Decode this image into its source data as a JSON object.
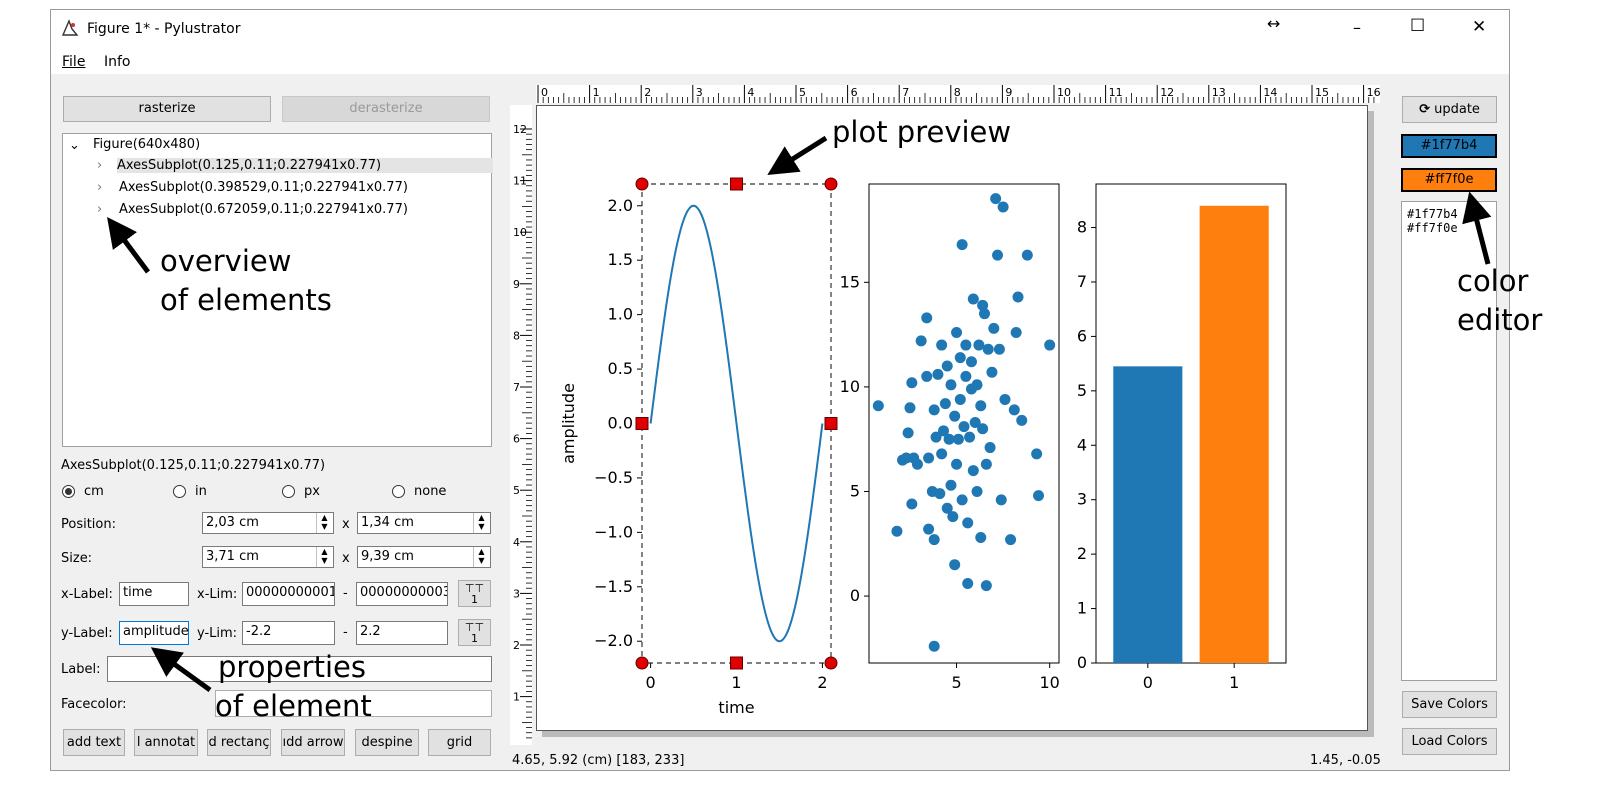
{
  "window": {
    "title": "Figure 1* - Pylustrator",
    "controls": {
      "resize": "↔",
      "minimize": "–",
      "maximize": "☐",
      "close": "✕"
    }
  },
  "menu": {
    "items": [
      "File",
      "Info"
    ]
  },
  "left_panel": {
    "rasterize_label": "rasterize",
    "derasterize_label": "derasterize",
    "tree": {
      "root": "Figure(640x480)",
      "children": [
        "AxesSubplot(0.125,0.11;0.227941x0.77)",
        "AxesSubplot(0.398529,0.11;0.227941x0.77)",
        "AxesSubplot(0.672059,0.11;0.227941x0.77)"
      ]
    },
    "selected_element": "AxesSubplot(0.125,0.11;0.227941x0.77)",
    "units": [
      "cm",
      "in",
      "px",
      "none"
    ],
    "selected_unit": "cm",
    "position": {
      "label": "Position:",
      "x": "2,03 cm",
      "y": "1,34 cm"
    },
    "size": {
      "label": "Size:",
      "w": "3,71 cm",
      "h": "9,39 cm"
    },
    "x_sep": "x",
    "xlabel": {
      "label": "x-Label:",
      "value": "time"
    },
    "xlim": {
      "label": "x-Lim:",
      "min": "00000000001",
      "max": "00000000003"
    },
    "ylabel": {
      "label": "y-Label:",
      "value": "amplitude"
    },
    "ylim": {
      "label": "y-Lim:",
      "min": "-2.2",
      "max": "2.2"
    },
    "dash": "-",
    "label_field": {
      "label": "Label:",
      "value": ""
    },
    "facecolor": {
      "label": "Facecolor:"
    },
    "tool_buttons": [
      "add text",
      "l annotat",
      "d rectanç",
      "ıdd arrow",
      "despine",
      "grid"
    ]
  },
  "annotations": {
    "plot_preview": "plot preview",
    "overview_1": "overview",
    "overview_2": "of elements",
    "properties_1": "properties",
    "properties_2": "of element",
    "color_1": "color",
    "color_2": "editor"
  },
  "ruler": {
    "h_labels": [
      "0",
      "1",
      "2",
      "3",
      "4",
      "5",
      "6",
      "7",
      "8",
      "9",
      "10",
      "11",
      "12",
      "13",
      "14",
      "15",
      "16"
    ],
    "v_labels": [
      "12",
      "11",
      "10",
      "9",
      "8",
      "7",
      "6",
      "5",
      "4",
      "3",
      "2",
      "1"
    ]
  },
  "right_panel": {
    "update_label": "update",
    "colors": [
      "#1f77b4",
      "#ff7f0e"
    ],
    "color_list_text": [
      "#1f77b4",
      "#ff7f0e"
    ],
    "save_colors": "Save Colors",
    "load_colors": "Load Colors"
  },
  "status": {
    "left": "4.65, 5.92 (cm) [183, 233]",
    "right": "1.45, -0.05"
  },
  "chart_data": [
    {
      "type": "line",
      "title": "",
      "xlabel": "time",
      "ylabel": "amplitude",
      "xlim": [
        -0.1,
        2.1
      ],
      "ylim": [
        -2.2,
        2.2
      ],
      "x_ticks": [
        0,
        1,
        2
      ],
      "y_ticks": [
        -2.0,
        -1.5,
        -1.0,
        -0.5,
        0.0,
        0.5,
        1.0,
        1.5,
        2.0
      ],
      "y_tick_labels": [
        "−2.0",
        "−1.5",
        "−1.0",
        "−0.5",
        "0.0",
        "0.5",
        "1.0",
        "1.5",
        "2.0"
      ],
      "series": [
        {
          "function": "2*sin(pi*t)",
          "t_range": [
            0,
            2
          ],
          "color": "#1f77b4"
        }
      ]
    },
    {
      "type": "scatter",
      "xlim": [
        0.3,
        10.5
      ],
      "ylim": [
        -3.2,
        19.7
      ],
      "x_ticks": [
        5,
        10
      ],
      "y_ticks": [
        0,
        5,
        10,
        15
      ],
      "color": "#1f77b4",
      "points": [
        [
          0.8,
          9.1
        ],
        [
          1.8,
          3.1
        ],
        [
          2.1,
          6.5
        ],
        [
          2.3,
          6.6
        ],
        [
          2.4,
          7.8
        ],
        [
          2.5,
          9.0
        ],
        [
          2.6,
          4.4
        ],
        [
          2.6,
          10.2
        ],
        [
          2.7,
          6.6
        ],
        [
          2.9,
          6.3
        ],
        [
          3.1,
          12.2
        ],
        [
          3.4,
          13.3
        ],
        [
          3.4,
          10.5
        ],
        [
          3.5,
          6.6
        ],
        [
          3.5,
          3.2
        ],
        [
          3.7,
          5.0
        ],
        [
          3.8,
          2.7
        ],
        [
          3.8,
          8.9
        ],
        [
          3.9,
          7.6
        ],
        [
          4.0,
          10.6
        ],
        [
          4.1,
          4.9
        ],
        [
          4.2,
          12.0
        ],
        [
          4.2,
          6.8
        ],
        [
          4.3,
          7.9
        ],
        [
          4.4,
          9.2
        ],
        [
          4.5,
          11.0
        ],
        [
          4.5,
          4.2
        ],
        [
          4.6,
          7.5
        ],
        [
          4.7,
          5.3
        ],
        [
          4.7,
          10.1
        ],
        [
          4.8,
          3.8
        ],
        [
          4.9,
          8.6
        ],
        [
          4.9,
          1.5
        ],
        [
          5.0,
          12.6
        ],
        [
          5.0,
          6.3
        ],
        [
          5.1,
          7.5
        ],
        [
          5.2,
          9.4
        ],
        [
          5.2,
          11.4
        ],
        [
          5.3,
          4.6
        ],
        [
          5.3,
          16.8
        ],
        [
          5.4,
          8.1
        ],
        [
          5.5,
          10.5
        ],
        [
          5.5,
          12.0
        ],
        [
          5.6,
          3.5
        ],
        [
          5.6,
          0.6
        ],
        [
          5.7,
          7.6
        ],
        [
          5.8,
          9.9
        ],
        [
          5.8,
          11.2
        ],
        [
          5.9,
          14.2
        ],
        [
          5.9,
          6.0
        ],
        [
          6.0,
          8.3
        ],
        [
          6.1,
          10.1
        ],
        [
          6.1,
          5.0
        ],
        [
          6.2,
          12.0
        ],
        [
          6.3,
          2.8
        ],
        [
          6.3,
          9.1
        ],
        [
          6.4,
          8.0
        ],
        [
          6.4,
          13.9
        ],
        [
          6.5,
          13.5
        ],
        [
          6.6,
          6.3
        ],
        [
          6.6,
          0.5
        ],
        [
          6.7,
          11.8
        ],
        [
          6.8,
          7.1
        ],
        [
          6.9,
          10.7
        ],
        [
          7.0,
          12.8
        ],
        [
          7.1,
          19.0
        ],
        [
          7.2,
          16.3
        ],
        [
          7.3,
          11.8
        ],
        [
          7.4,
          4.6
        ],
        [
          7.5,
          18.6
        ],
        [
          7.6,
          9.4
        ],
        [
          7.9,
          2.7
        ],
        [
          8.1,
          8.9
        ],
        [
          8.2,
          12.6
        ],
        [
          8.3,
          14.3
        ],
        [
          8.5,
          8.4
        ],
        [
          8.8,
          16.3
        ],
        [
          9.3,
          6.8
        ],
        [
          9.4,
          4.8
        ],
        [
          10.0,
          12.0
        ],
        [
          3.8,
          -2.4
        ]
      ]
    },
    {
      "type": "bar",
      "categories": [
        "0",
        "1"
      ],
      "values": [
        5.45,
        8.4
      ],
      "colors": [
        "#1f77b4",
        "#ff7f0e"
      ],
      "ylim": [
        0,
        8.8
      ],
      "y_ticks": [
        0,
        1,
        2,
        3,
        4,
        5,
        6,
        7,
        8
      ]
    }
  ]
}
